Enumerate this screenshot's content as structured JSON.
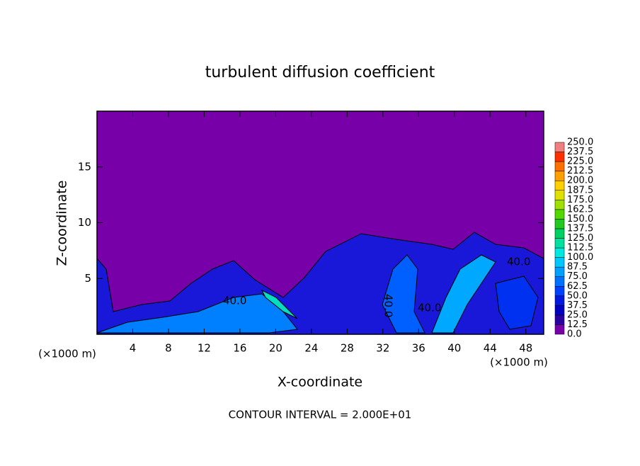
{
  "chart_data": {
    "type": "contour",
    "title": "turbulent diffusion coefficient",
    "x_label": "X-coordinate",
    "y_label": "Z-coordinate",
    "x_unit": "(×1000 m)",
    "y_unit": "(×1000 m)",
    "note": "CONTOUR INTERVAL = 2.000E+01",
    "contour_labels": [
      "40.0",
      "40.0",
      "40.0",
      "40.0"
    ],
    "xlim": [
      0,
      50
    ],
    "ylim": [
      0,
      20
    ],
    "xticks": [
      4,
      8,
      12,
      16,
      20,
      24,
      28,
      32,
      36,
      40,
      44,
      48
    ],
    "yticks": [
      5,
      10,
      15
    ],
    "colorbar": {
      "levels": [
        {
          "value": 0,
          "label": "0.0"
        },
        {
          "value": 12.5,
          "label": "12.5"
        },
        {
          "value": 25,
          "label": "25.0"
        },
        {
          "value": 37.5,
          "label": "37.5"
        },
        {
          "value": 50,
          "label": "50.0"
        },
        {
          "value": 62.5,
          "label": "62.5"
        },
        {
          "value": 75,
          "label": "75.0"
        },
        {
          "value": 87.5,
          "label": "87.5"
        },
        {
          "value": 100,
          "label": "100.0"
        },
        {
          "value": 112.5,
          "label": "112.5"
        },
        {
          "value": 125,
          "label": "125.0"
        },
        {
          "value": 137.5,
          "label": "137.5"
        },
        {
          "value": 150,
          "label": "150.0"
        },
        {
          "value": 162.5,
          "label": "162.5"
        },
        {
          "value": 175,
          "label": "175.0"
        },
        {
          "value": 187.5,
          "label": "187.5"
        },
        {
          "value": 200,
          "label": "200.0"
        },
        {
          "value": 212.5,
          "label": "212.5"
        },
        {
          "value": 225,
          "label": "225.0"
        },
        {
          "value": 237.5,
          "label": "237.5"
        },
        {
          "value": 250,
          "label": "250.0"
        }
      ],
      "colors": [
        "#7800a8",
        "#2a00a0",
        "#0000c0",
        "#0018e0",
        "#0040ff",
        "#0070ff",
        "#00a0ff",
        "#00c8ff",
        "#00e8e0",
        "#00e0a0",
        "#00d060",
        "#20c820",
        "#50d800",
        "#a0e000",
        "#e0e000",
        "#ffd000",
        "#ffa000",
        "#ff7000",
        "#ff3000",
        "#f08080"
      ]
    }
  }
}
